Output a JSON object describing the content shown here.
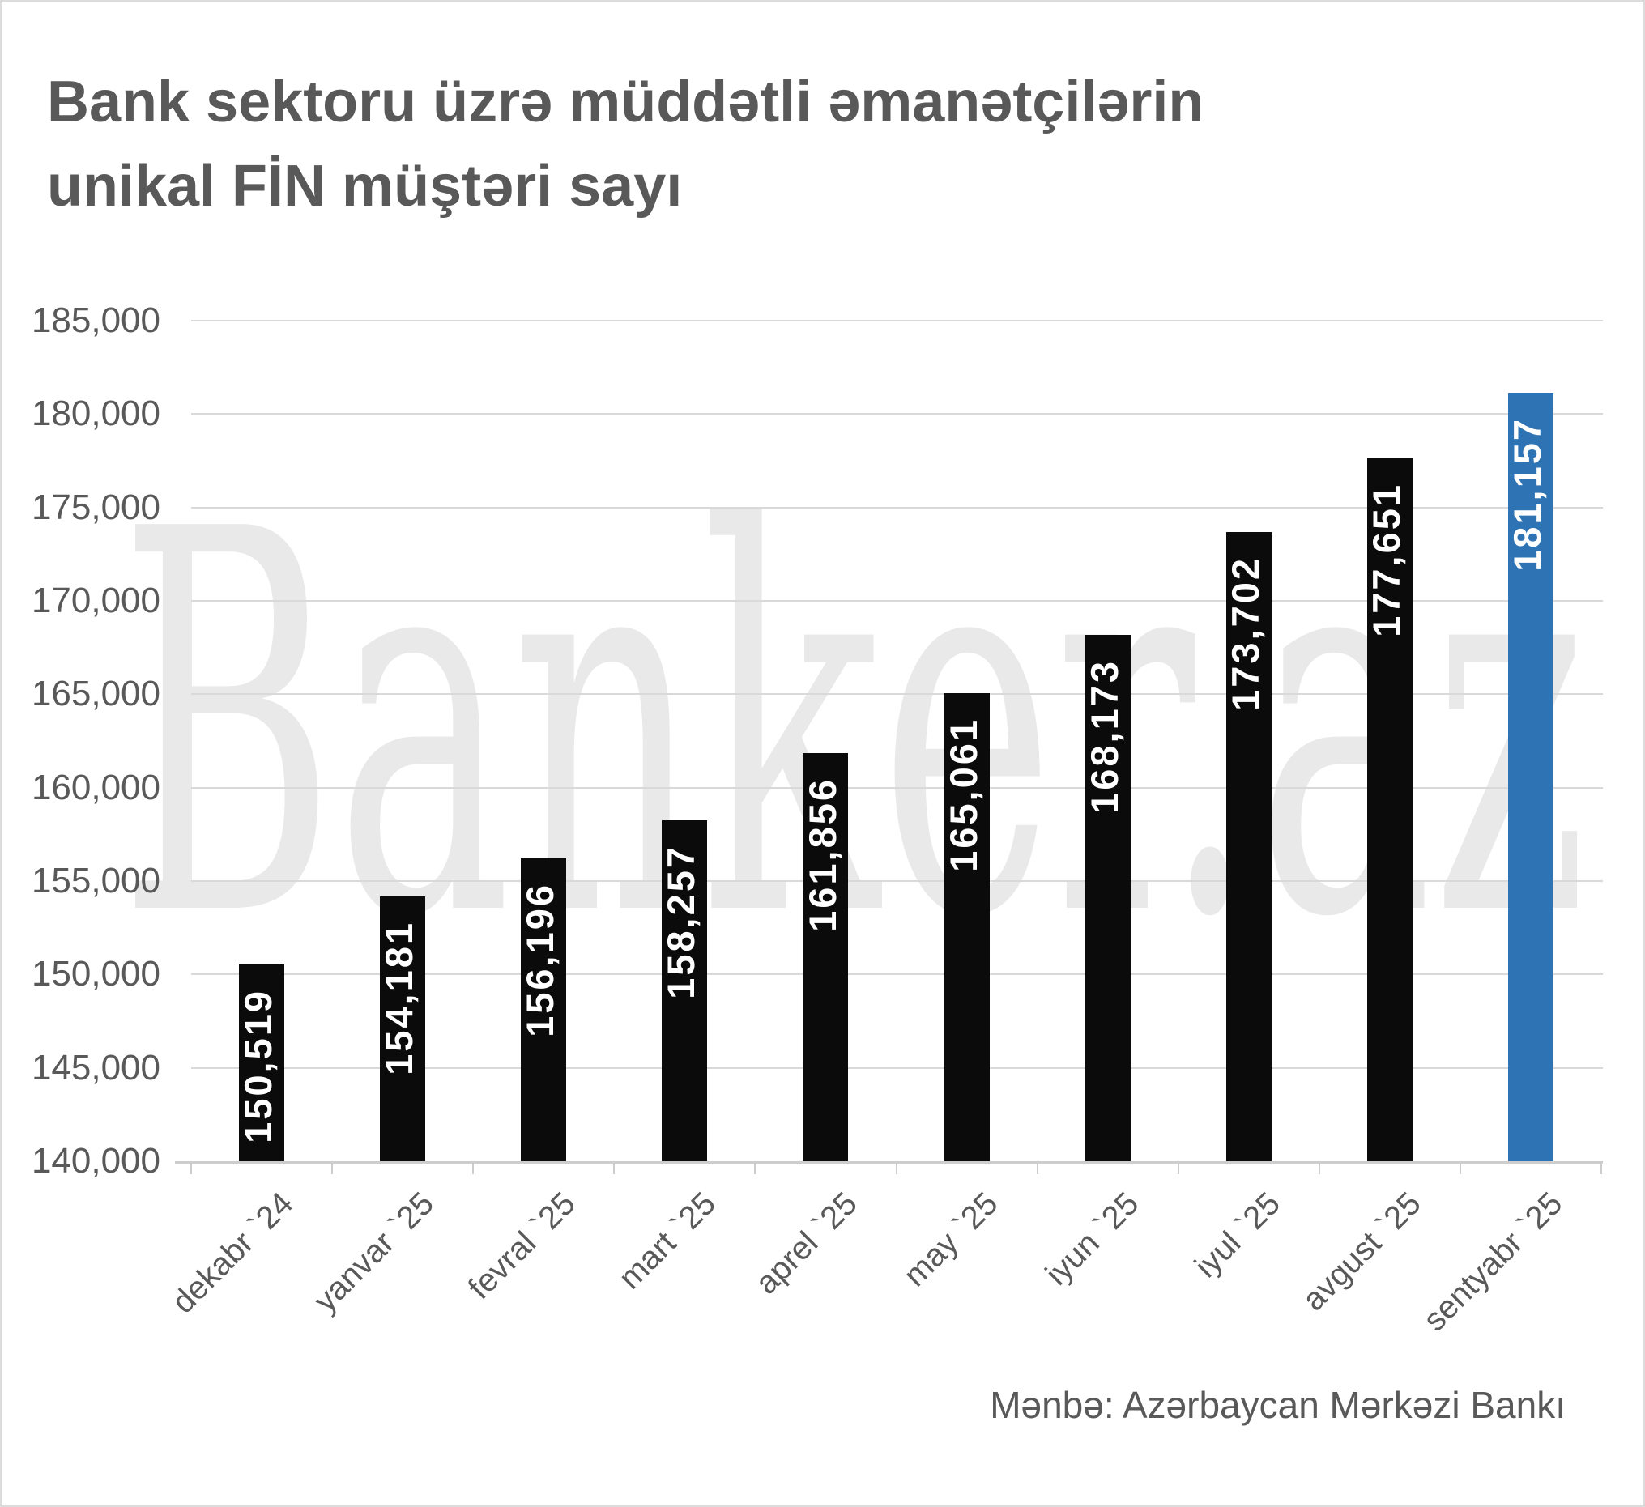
{
  "title": {
    "line1": "Bank sektoru üzrə müddətli əmanətçilərin",
    "line2": "unikal FİN müştəri sayı"
  },
  "watermark": "Banker.az",
  "source": "Mənbə: Azərbaycan Mərkəzi Bankı",
  "colors": {
    "bar": "#0b0b0b",
    "highlight": "#2e74b5",
    "title_text": "#595959",
    "axis_text": "#595959",
    "gridline": "#d9d9d9",
    "axis_line": "#cdcdcd",
    "value_label_text": "#ffffff",
    "watermark_text": "#e9e9e9"
  },
  "chart_data": {
    "type": "bar",
    "title": "Bank sektoru üzrə müddətli əmanətçilərin unikal FİN müştəri sayı",
    "xlabel": "",
    "ylabel": "",
    "categories": [
      "dekabr `24",
      "yanvar `25",
      "fevral `25",
      "mart `25",
      "aprel `25",
      "may `25",
      "iyun `25",
      "iyul `25",
      "avgust `25",
      "sentyabr `25"
    ],
    "values": [
      150519,
      154181,
      156196,
      158257,
      161856,
      165061,
      168173,
      173702,
      177651,
      181157
    ],
    "value_labels": [
      "150,519",
      "154,181",
      "156,196",
      "158,257",
      "161,856",
      "165,061",
      "168,173",
      "173,702",
      "177,651",
      "181,157"
    ],
    "highlight_index": 9,
    "ylim": [
      140000,
      185000
    ],
    "ytick_step": 5000,
    "ytick_labels": [
      "140,000",
      "145,000",
      "150,000",
      "155,000",
      "160,000",
      "165,000",
      "170,000",
      "175,000",
      "180,000",
      "185,000"
    ],
    "grid": true,
    "legend_position": "none"
  }
}
